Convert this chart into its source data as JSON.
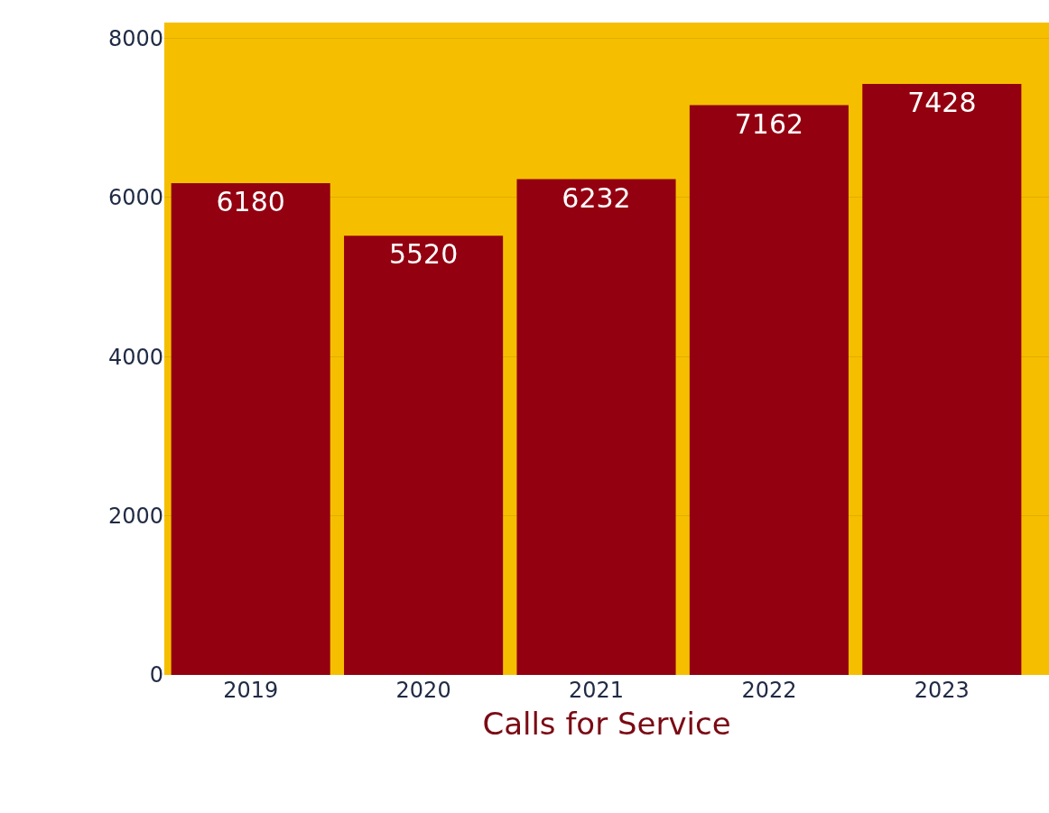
{
  "chart_data": {
    "type": "bar",
    "xlabel": "Calls for Service",
    "categories": [
      "2019",
      "2020",
      "2021",
      "2022",
      "2023"
    ],
    "values": [
      6180,
      5520,
      6232,
      7162,
      7428
    ],
    "color": "#930010",
    "data_labels": true,
    "ylim": [
      0,
      8200
    ],
    "yticks": [
      0,
      2000,
      4000,
      6000,
      8000
    ],
    "grid": "y",
    "bands": [
      {
        "axis": "y",
        "from": 0,
        "to": 8200,
        "color": "#f5bf00"
      }
    ]
  }
}
